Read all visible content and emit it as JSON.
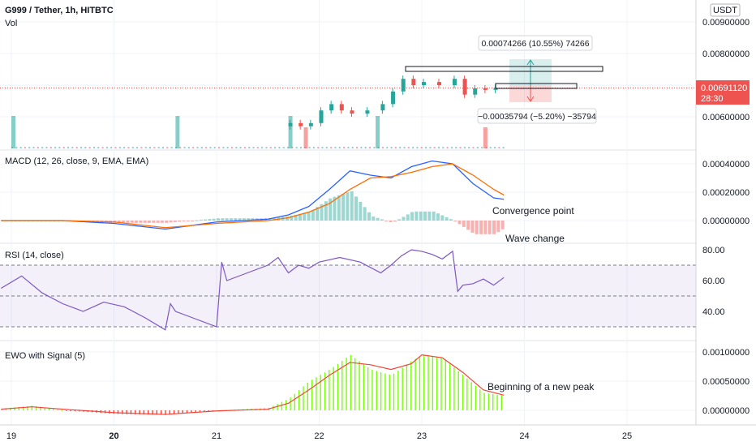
{
  "header": {
    "symbol_line": "G999 / Tether, 1h, HITBTC",
    "volume_label": "Vol",
    "currency": "USDT"
  },
  "colors": {
    "up": "#26a69a",
    "down": "#ef5350",
    "macd_line": "#2962ff",
    "signal_line": "#ff6d00",
    "rsi_line": "#7e57c2",
    "ewo_bar": "#76ff03",
    "ewo_signal": "#f44336",
    "price_tag": "#ef5350"
  },
  "price_tag": {
    "value": "0.00691120",
    "countdown": "28:30"
  },
  "measure_up": {
    "text": "0.00074266 (10.55%) 74266"
  },
  "measure_down": {
    "text": "−0.00035794 (−5.20%) −35794"
  },
  "annotations": {
    "macd": "Convergence point",
    "macd2": "Wave change",
    "ewo": "Beginning of a new peak"
  },
  "chart_data": [
    {
      "type": "candlestick",
      "title": "G999 / Tether, 1h, HITBTC",
      "y_ticks": [
        "0.00900000",
        "0.00800000",
        "0.00700000",
        "0.00600000"
      ],
      "ylim": [
        0.0055,
        0.0095
      ],
      "x_ticks": [
        "19",
        "20",
        "21",
        "22",
        "23",
        "24",
        "25"
      ],
      "last_price": 0.0069112,
      "candles": [
        [
          21.7,
          0.0057,
          0.0058
        ],
        [
          21.8,
          0.0058,
          0.0057
        ],
        [
          21.9,
          0.0057,
          0.0058
        ],
        [
          22.0,
          0.0058,
          0.0062
        ],
        [
          22.1,
          0.0062,
          0.0064
        ],
        [
          22.2,
          0.0064,
          0.0062
        ],
        [
          22.3,
          0.0062,
          0.0061
        ],
        [
          22.45,
          0.0061,
          0.0062
        ],
        [
          22.6,
          0.0062,
          0.0064
        ],
        [
          22.7,
          0.0064,
          0.0068
        ],
        [
          22.8,
          0.0068,
          0.0072
        ],
        [
          22.9,
          0.0072,
          0.007
        ],
        [
          23.0,
          0.007,
          0.0071
        ],
        [
          23.15,
          0.0071,
          0.007
        ],
        [
          23.3,
          0.007,
          0.0072
        ],
        [
          23.4,
          0.0072,
          0.0067
        ],
        [
          23.5,
          0.0067,
          0.0069
        ],
        [
          23.6,
          0.0069,
          0.00685
        ],
        [
          23.7,
          0.00685,
          0.00691
        ]
      ],
      "volume_spikes": [
        [
          19.0,
          "up"
        ],
        [
          20.6,
          "up"
        ],
        [
          21.7,
          "up"
        ],
        [
          21.85,
          "down"
        ],
        [
          22.55,
          "up"
        ],
        [
          23.6,
          "down"
        ]
      ]
    },
    {
      "type": "line",
      "title": "MACD (12, 26, close, 9, EMA, EMA)",
      "y_ticks": [
        "0.00040000",
        "0.00020000",
        "0.00000000"
      ],
      "ylim": [
        -0.0001,
        0.00045
      ],
      "series": [
        {
          "name": "MACD",
          "x": [
            18.9,
            19.5,
            20.0,
            20.5,
            21.0,
            21.5,
            21.7,
            21.9,
            22.1,
            22.3,
            22.5,
            22.7,
            22.9,
            23.1,
            23.3,
            23.5,
            23.7,
            23.8
          ],
          "values": [
            0.0,
            0.0,
            -2e-05,
            -6e-05,
            -1e-05,
            1e-05,
            4e-05,
            0.0001,
            0.00022,
            0.00035,
            0.00032,
            0.0003,
            0.00038,
            0.00042,
            0.0004,
            0.00026,
            0.00016,
            0.00015
          ]
        },
        {
          "name": "Signal",
          "x": [
            18.9,
            19.5,
            20.0,
            20.5,
            21.0,
            21.5,
            21.7,
            21.9,
            22.1,
            22.3,
            22.5,
            22.7,
            22.9,
            23.1,
            23.3,
            23.5,
            23.7,
            23.8
          ],
          "values": [
            0.0,
            0.0,
            -1e-05,
            -5e-05,
            -2e-05,
            0.0,
            2e-05,
            6e-05,
            0.00012,
            0.00022,
            0.0003,
            0.00031,
            0.00034,
            0.00038,
            0.0004,
            0.00032,
            0.00022,
            0.00018
          ]
        }
      ]
    },
    {
      "type": "line",
      "title": "RSI (14, close)",
      "y_ticks": [
        "80.00",
        "60.00",
        "40.00"
      ],
      "ylim": [
        25,
        85
      ],
      "band": [
        30,
        70
      ],
      "series": [
        {
          "name": "RSI",
          "x": [
            18.9,
            19.1,
            19.3,
            19.5,
            19.7,
            19.9,
            20.1,
            20.3,
            20.5,
            20.55,
            20.6,
            20.8,
            21.0,
            21.05,
            21.1,
            21.3,
            21.5,
            21.6,
            21.7,
            21.8,
            21.9,
            22.0,
            22.2,
            22.4,
            22.6,
            22.7,
            22.8,
            22.9,
            23.0,
            23.1,
            23.2,
            23.3,
            23.35,
            23.4,
            23.5,
            23.6,
            23.7,
            23.8
          ],
          "values": [
            55,
            63,
            52,
            45,
            40,
            46,
            43,
            36,
            28,
            45,
            40,
            35,
            30,
            72,
            60,
            65,
            70,
            75,
            65,
            70,
            68,
            72,
            75,
            72,
            65,
            70,
            76,
            80,
            79,
            77,
            74,
            79,
            53,
            57,
            58,
            61,
            57,
            62
          ]
        }
      ]
    },
    {
      "type": "bar",
      "title": "EWO with Signal (5)",
      "y_ticks": [
        "0.00100000",
        "0.00050000",
        "0.00000000"
      ],
      "ylim": [
        -0.0001,
        0.0011
      ],
      "bars": {
        "x_start": 18.9,
        "x_end": 23.8,
        "values_at": [
          [
            18.9,
            3e-05
          ],
          [
            19.2,
            8e-05
          ],
          [
            19.5,
            0.0
          ],
          [
            20.0,
            -6e-05
          ],
          [
            20.5,
            -8e-05
          ],
          [
            21.0,
            0.0
          ],
          [
            21.5,
            4e-05
          ],
          [
            21.7,
            0.0002
          ],
          [
            21.9,
            0.0005
          ],
          [
            22.1,
            0.0007
          ],
          [
            22.3,
            0.00095
          ],
          [
            22.5,
            0.0007
          ],
          [
            22.7,
            0.0006
          ],
          [
            22.9,
            0.00085
          ],
          [
            23.0,
            0.00095
          ],
          [
            23.2,
            0.0009
          ],
          [
            23.4,
            0.0006
          ],
          [
            23.6,
            0.0003
          ],
          [
            23.8,
            0.00025
          ]
        ]
      },
      "series": [
        {
          "name": "Signal",
          "x": [
            18.9,
            19.2,
            19.5,
            20.0,
            20.5,
            21.0,
            21.5,
            21.7,
            21.9,
            22.1,
            22.3,
            22.5,
            22.7,
            22.9,
            23.0,
            23.2,
            23.4,
            23.6,
            23.8
          ],
          "values": [
            2e-05,
            6e-05,
            2e-05,
            -4e-05,
            -7e-05,
            -1e-05,
            2e-05,
            0.00012,
            0.00035,
            0.0006,
            0.00082,
            0.00078,
            0.0007,
            0.0008,
            0.00095,
            0.0009,
            0.00065,
            0.00035,
            0.00026
          ]
        }
      ]
    }
  ]
}
